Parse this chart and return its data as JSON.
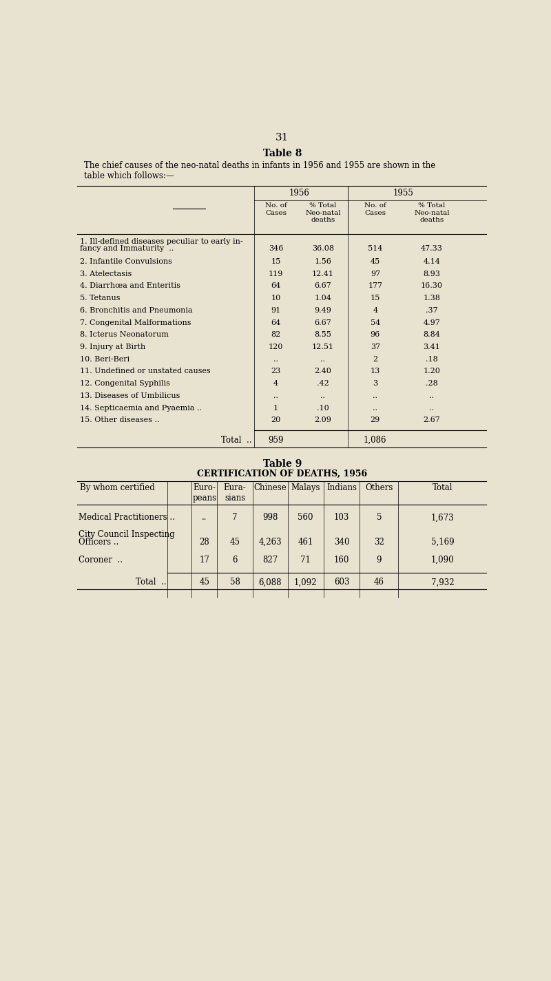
{
  "bg_color": "#e8e2d0",
  "page_number": "31",
  "table8_title": "Table 8",
  "table8_desc": "The chief causes of the neo-natal deaths in infants in 1956 and 1955 are shown in the\ntable which follows:—",
  "table8_col_headers": [
    "No. of\nCases",
    "% Total\nNeo-natal\ndeaths",
    "No. of\nCases",
    "% Total\nNeo-natal\ndeaths"
  ],
  "table8_year_headers": [
    "1956",
    "1955"
  ],
  "table8_rows": [
    [
      "1. Ill-defined diseases peculiar to early in-\n    fancy and Immaturity  ..",
      "346",
      "36.08",
      "514",
      "47.33",
      true
    ],
    [
      "2. Infantile Convulsions",
      "15",
      "1.56",
      "45",
      "4.14",
      false
    ],
    [
      "3. Atelectasis",
      "119",
      "12.41",
      "97",
      "8.93",
      false
    ],
    [
      "4. Diarrhœa and Enteritis",
      "64",
      "6.67",
      "177",
      "16.30",
      false
    ],
    [
      "5. Tetanus",
      "10",
      "1.04",
      "15",
      "1.38",
      false
    ],
    [
      "6. Bronchitis and Pneumonia",
      "91",
      "9.49",
      "4",
      ".37",
      false
    ],
    [
      "7. Congenital Malformations",
      "64",
      "6.67",
      "54",
      "4.97",
      false
    ],
    [
      "8. Icterus Neonatorum",
      "82",
      "8.55",
      "96",
      "8.84",
      false
    ],
    [
      "9. Injury at Birth",
      "120",
      "12.51",
      "37",
      "3.41",
      false
    ],
    [
      "10. Beri-Beri",
      "..",
      "..",
      "2",
      ".18",
      false
    ],
    [
      "11. Undefined or unstated causes",
      "23",
      "2.40",
      "13",
      "1.20",
      false
    ],
    [
      "12. Congenital Syphilis",
      "4",
      ".42",
      "3",
      ".28",
      false
    ],
    [
      "13. Diseases of Umbilicus",
      "..",
      "..",
      "..",
      "..",
      false
    ],
    [
      "14. Septicaemia and Pyaemia ..",
      "1",
      ".10",
      "..",
      "..",
      false
    ],
    [
      "15. Other diseases ..",
      "20",
      "2.09",
      "29",
      "2.67",
      false
    ]
  ],
  "table8_total_1956": "959",
  "table8_total_1955": "1,086",
  "table9_title": "Table 9",
  "table9_subtitle": "CERTIFICATION OF DEATHS, 1956",
  "table9_col_headers": [
    "By whom certified",
    "Euro-\npeans",
    "Eura-\nsians",
    "Chinese",
    "Malays",
    "Indians",
    "Others",
    "Total"
  ],
  "table9_rows": [
    [
      "Medical Practitioners ..",
      "..",
      "7",
      "998",
      "560",
      "103",
      "5",
      "1,673",
      false
    ],
    [
      "City Council Inspecting\n  Officers ..",
      "28",
      "45",
      "4,263",
      "461",
      "340",
      "32",
      "5,169",
      true
    ],
    [
      "Coroner  ..",
      "17",
      "6",
      "827",
      "71",
      "160",
      "9",
      "1,090",
      false
    ]
  ],
  "table9_total": [
    "Total  ..",
    "45",
    "58",
    "6,088",
    "1,092",
    "603",
    "46",
    "7,932"
  ],
  "font_size_body": 8.5,
  "font_size_title": 10,
  "font_size_page": 11
}
